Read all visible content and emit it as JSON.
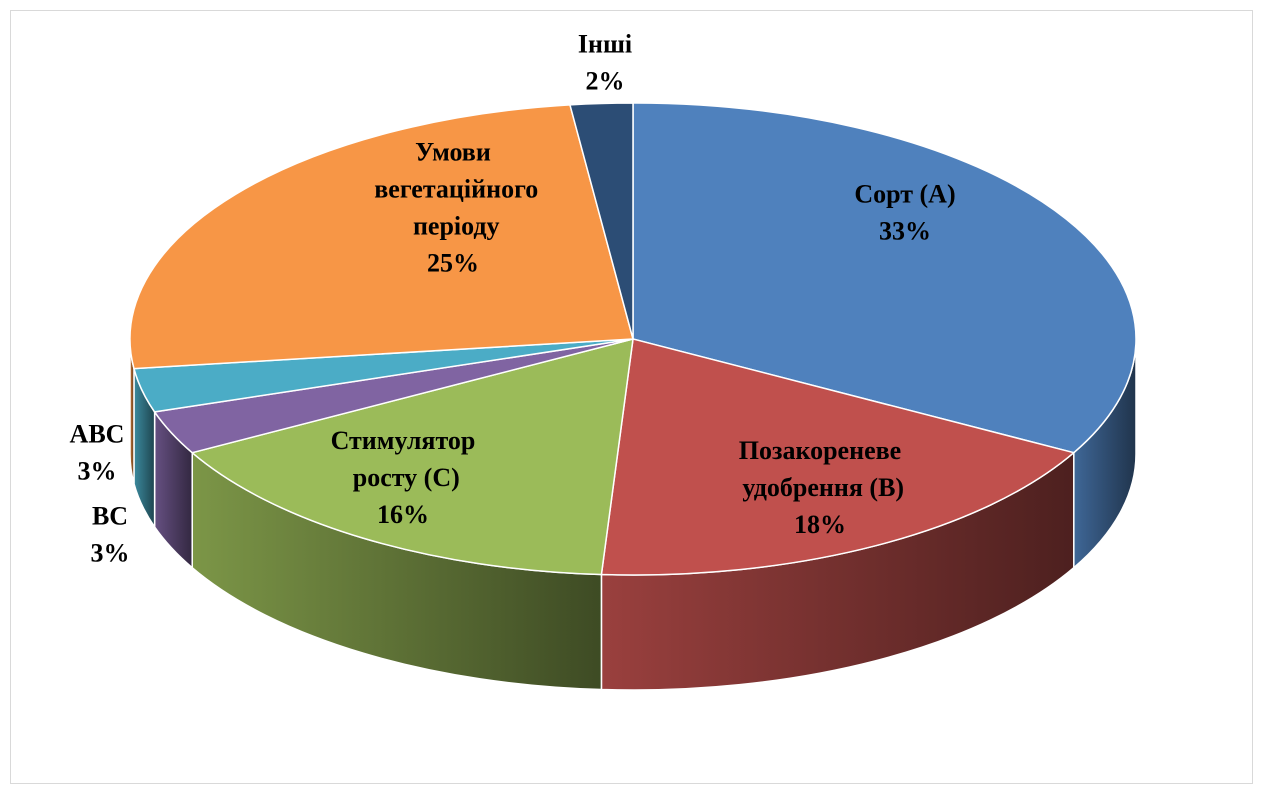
{
  "chart_data": {
    "type": "pie",
    "categories": [
      "Сорт (A)",
      "Позакореневе удобрення (В)",
      "Стимулятор росту (C)",
      "АВС",
      "ВС",
      "Умови вегетаційного періоду",
      "Інші"
    ],
    "values": [
      33,
      18,
      16,
      3,
      3,
      25,
      2
    ],
    "value_labels": [
      "33%",
      "18%",
      "16%",
      "3%",
      "3%",
      "25%",
      "2%"
    ],
    "colors": [
      "#4f81bd",
      "#c0504d",
      "#9bbb59",
      "#8064a2",
      "#4bacc6",
      "#f79646",
      "#2c4d75"
    ],
    "three_d": true
  }
}
